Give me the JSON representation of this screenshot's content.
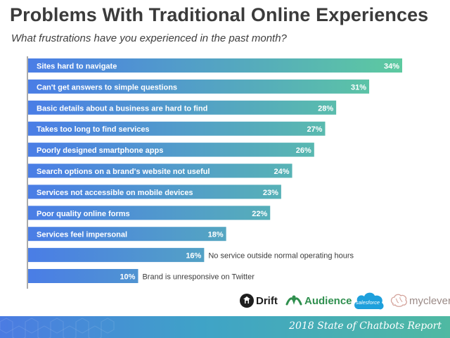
{
  "header": {
    "title": "Problems With Traditional Online Experiences",
    "subtitle": "What frustrations have you experienced in the past month?"
  },
  "chart_data": {
    "type": "bar",
    "orientation": "horizontal",
    "categories": [
      "Sites hard to navigate",
      "Can't get answers to simple questions",
      "Basic details about a business are hard to find",
      "Takes too long to find services",
      "Poorly designed smartphone apps",
      "Search options on a brand's website not useful",
      "Services not accessible on mobile devices",
      "Poor quality online forms",
      "Services feel impersonal",
      "No service outside normal operating hours",
      "Brand is unresponsive on Twitter"
    ],
    "values": [
      34,
      31,
      28,
      27,
      26,
      24,
      23,
      22,
      18,
      16,
      10
    ],
    "value_labels": [
      "34%",
      "31%",
      "28%",
      "27%",
      "26%",
      "24%",
      "23%",
      "22%",
      "18%",
      "16%",
      "10%"
    ],
    "xlim": [
      0,
      34
    ],
    "grid": false,
    "legend": "none",
    "colors": {
      "start": "#4a7de6",
      "end": "#5dcaa0"
    }
  },
  "logos": [
    {
      "name": "drift-logo",
      "text": "Drift"
    },
    {
      "name": "audience-logo",
      "text": "Audience"
    },
    {
      "name": "salesforce-logo",
      "text": "salesforce"
    },
    {
      "name": "myclever-logo",
      "text": "myclever"
    }
  ],
  "footer": {
    "text": "2018 State of Chatbots Report"
  }
}
